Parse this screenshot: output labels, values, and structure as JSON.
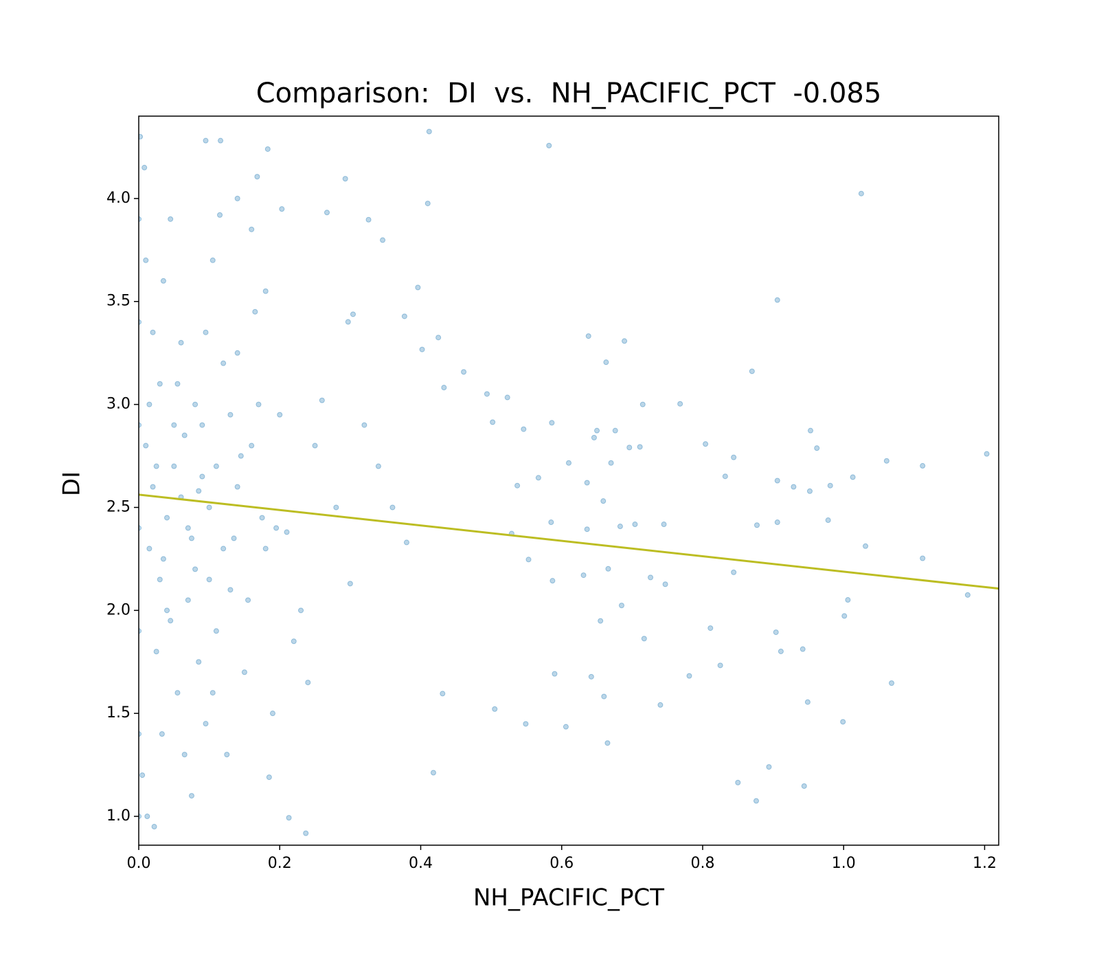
{
  "chart_data": {
    "type": "scatter",
    "title": "Comparison:  DI  vs.  NH_PACIFIC_PCT  -0.085",
    "x_label": "NH_PACIFIC_PCT",
    "y_label": "DI",
    "xlim": [
      0,
      1.22
    ],
    "ylim": [
      0.86,
      4.4
    ],
    "xticks": [
      {
        "value": 0,
        "label": "0.0"
      },
      {
        "value": 0.2,
        "label": "0.2"
      },
      {
        "value": 0.4,
        "label": "0.4"
      },
      {
        "value": 0.6,
        "label": "0.6"
      },
      {
        "value": 0.8,
        "label": "0.8"
      },
      {
        "value": 1.0,
        "label": "1.0"
      },
      {
        "value": 1.2,
        "label": "1.2"
      }
    ],
    "yticks": [
      {
        "value": 1.0,
        "label": "1.0"
      },
      {
        "value": 1.5,
        "label": "1.5"
      },
      {
        "value": 2.0,
        "label": "2.0"
      },
      {
        "value": 2.5,
        "label": "2.5"
      },
      {
        "value": 3.0,
        "label": "3.0"
      },
      {
        "value": 3.5,
        "label": "3.5"
      },
      {
        "value": 4.0,
        "label": "4.0"
      }
    ],
    "series": [
      {
        "type": "scatter",
        "color": "#1f77b4",
        "x": [
          0.412,
          0.582,
          1.025,
          0.906,
          0.638,
          0.689,
          0.663,
          0.87,
          0.461,
          0.768,
          0.715,
          0.953,
          0.962,
          1.203,
          1.061,
          1.112,
          1.013,
          0.981,
          0.929,
          0.952,
          0.906,
          0.844,
          0.832,
          0.804,
          0.978,
          0.877,
          0.906,
          1.031,
          1.112,
          1.176,
          1.006,
          1.001,
          0.904,
          0.942,
          0.911,
          1.068,
          0.949,
          0.999,
          0.894,
          0.85,
          0.944,
          0.876,
          0.665,
          0.606,
          0.237,
          0.213,
          0.549,
          0.505,
          0.418,
          0.431,
          0.59,
          0.642,
          0.66,
          0.717,
          0.74,
          0.781,
          0.811,
          0.825,
          0.655,
          0.685,
          0.587,
          0.631,
          0.666,
          0.726,
          0.747,
          0.844,
          0.553,
          0.529,
          0.585,
          0.636,
          0.683,
          0.704,
          0.745,
          0.537,
          0.567,
          0.61,
          0.636,
          0.659,
          0.67,
          0.696,
          0.711,
          0.646,
          0.65,
          0.676,
          0.586,
          0.546,
          0.502,
          0.494,
          0.523,
          0.433,
          0.377,
          0.396,
          0.402,
          0.425,
          0.304,
          0.297,
          0.326,
          0.346,
          0.41,
          0.293,
          0.183,
          0.095,
          0.116,
          0.168,
          0.203,
          0.267,
          0.01,
          0.02,
          0.03,
          0.015,
          0.04,
          0.025,
          0.05,
          0.06,
          0.035,
          0.045,
          0.07,
          0.08,
          0.09,
          0.1,
          0.11,
          0.12,
          0.13,
          0.14,
          0.15,
          0.16,
          0.17,
          0.18,
          0.19,
          0.005,
          0.012,
          0.022,
          0.033,
          0.055,
          0.065,
          0.075,
          0.085,
          0.095,
          0.105,
          0.115,
          0.125,
          0.135,
          0.145,
          0.155,
          0.165,
          0.175,
          0.185,
          0.195,
          0.21,
          0.22,
          0.23,
          0.24,
          0.25,
          0.26,
          0.28,
          0.3,
          0.32,
          0.34,
          0.36,
          0.38,
          0.04,
          0.03,
          0.02,
          0.01,
          0.008,
          0.002,
          0,
          0,
          0,
          0,
          0,
          0,
          0,
          0.05,
          0.06,
          0.07,
          0.08,
          0.09,
          0.1,
          0.11,
          0.12,
          0.13,
          0.14,
          0.015,
          0.025,
          0.035,
          0.045,
          0.055,
          0.065,
          0.075,
          0.085,
          0.095,
          0.105,
          0.2,
          0.18,
          0.16,
          0.14
        ],
        "values": [
          4.325,
          4.257,
          4.024,
          3.507,
          3.332,
          3.308,
          3.205,
          3.161,
          3.158,
          3.003,
          3.0,
          2.873,
          2.788,
          2.76,
          2.726,
          2.702,
          2.647,
          2.606,
          2.6,
          2.579,
          2.63,
          2.743,
          2.651,
          2.808,
          2.438,
          2.414,
          2.428,
          2.312,
          2.253,
          2.075,
          2.051,
          1.973,
          1.894,
          1.812,
          1.801,
          1.647,
          1.555,
          1.459,
          1.24,
          1.164,
          1.147,
          1.075,
          1.356,
          1.435,
          0.918,
          0.993,
          1.449,
          1.521,
          1.212,
          1.596,
          1.692,
          1.678,
          1.582,
          1.863,
          1.541,
          1.682,
          1.914,
          1.733,
          1.949,
          2.024,
          2.144,
          2.171,
          2.202,
          2.16,
          2.127,
          2.185,
          2.247,
          2.373,
          2.428,
          2.394,
          2.408,
          2.418,
          2.418,
          2.606,
          2.644,
          2.716,
          2.62,
          2.531,
          2.716,
          2.791,
          2.794,
          2.839,
          2.873,
          2.873,
          2.911,
          2.88,
          2.914,
          3.051,
          3.034,
          3.082,
          3.428,
          3.568,
          3.267,
          3.325,
          3.438,
          3.401,
          3.897,
          3.798,
          3.976,
          4.096,
          4.24,
          4.281,
          4.281,
          4.106,
          3.949,
          3.932,
          2.8,
          2.6,
          3.1,
          2.3,
          2.0,
          1.8,
          2.7,
          3.3,
          3.6,
          3.9,
          2.4,
          2.2,
          2.9,
          2.5,
          1.9,
          3.2,
          2.1,
          2.6,
          1.7,
          2.8,
          3.0,
          2.3,
          1.5,
          1.2,
          1.0,
          0.95,
          1.4,
          1.6,
          1.3,
          1.1,
          1.75,
          1.45,
          3.7,
          3.92,
          1.3,
          2.35,
          2.75,
          2.05,
          3.45,
          2.45,
          1.19,
          2.4,
          2.38,
          1.85,
          2.0,
          1.65,
          2.8,
          3.02,
          2.5,
          2.13,
          2.9,
          2.7,
          2.5,
          2.33,
          2.45,
          2.15,
          3.35,
          3.7,
          4.15,
          4.3,
          3.9,
          3.4,
          2.9,
          2.4,
          1.9,
          1.4,
          1.0,
          2.9,
          2.55,
          2.05,
          3.0,
          2.65,
          2.15,
          2.7,
          2.3,
          2.95,
          3.25,
          3.0,
          2.7,
          2.25,
          1.95,
          3.1,
          2.85,
          2.35,
          2.58,
          3.35,
          1.6,
          2.95,
          3.55,
          3.85,
          4.0
        ]
      },
      {
        "type": "line",
        "color": "#bcbd22",
        "x": [
          0,
          1.22
        ],
        "values": [
          2.562,
          2.106
        ]
      }
    ]
  }
}
